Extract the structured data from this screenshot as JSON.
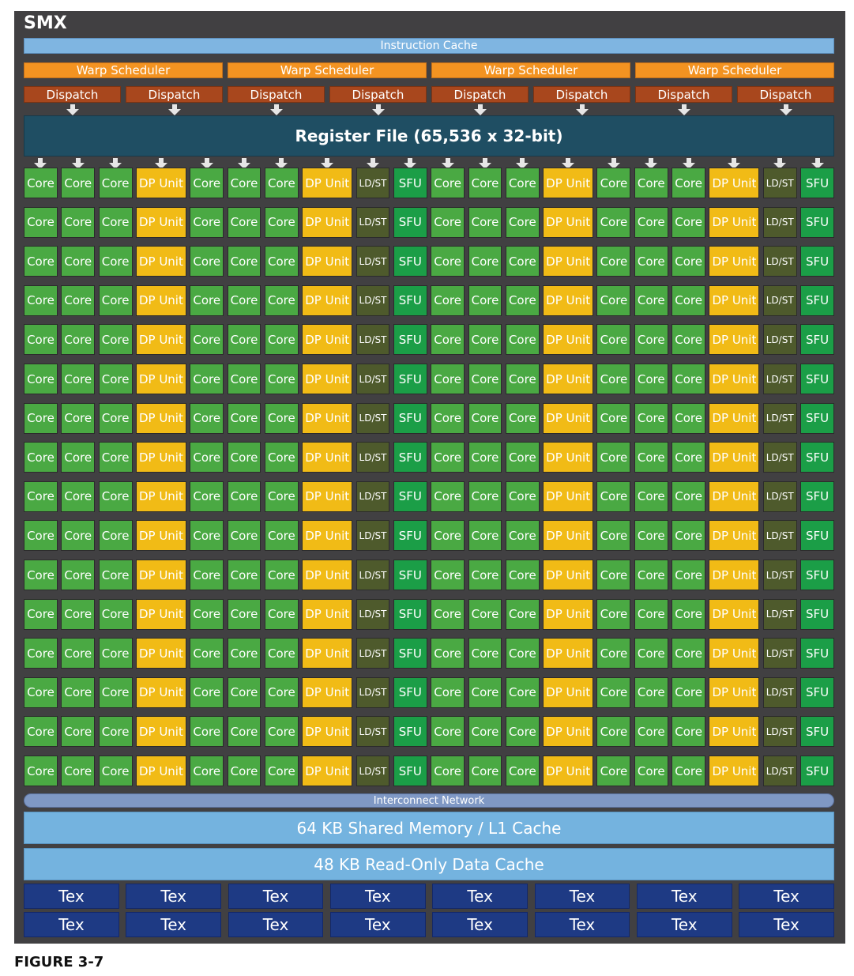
{
  "diagram": {
    "title": "SMX",
    "instruction_cache": "Instruction Cache",
    "warp_schedulers": [
      "Warp Scheduler",
      "Warp Scheduler",
      "Warp Scheduler",
      "Warp Scheduler"
    ],
    "dispatch_units": [
      "Dispatch",
      "Dispatch",
      "Dispatch",
      "Dispatch",
      "Dispatch",
      "Dispatch",
      "Dispatch",
      "Dispatch"
    ],
    "register_file": "Register File (65,536 x 32-bit)",
    "unit_grid": {
      "rows": 16,
      "columns": [
        "Core",
        "Core",
        "Core",
        "DP Unit",
        "Core",
        "Core",
        "Core",
        "DP Unit",
        "LD/ST",
        "SFU",
        "Core",
        "Core",
        "Core",
        "DP Unit",
        "Core",
        "Core",
        "Core",
        "DP Unit",
        "LD/ST",
        "SFU"
      ]
    },
    "interconnect": "Interconnect Network",
    "shared_memory": "64 KB Shared Memory / L1 Cache",
    "readonly_cache": "48 KB Read-Only Data Cache",
    "tex_units": [
      [
        "Tex",
        "Tex",
        "Tex",
        "Tex",
        "Tex",
        "Tex",
        "Tex",
        "Tex"
      ],
      [
        "Tex",
        "Tex",
        "Tex",
        "Tex",
        "Tex",
        "Tex",
        "Tex",
        "Tex"
      ]
    ],
    "colors": {
      "frame": "#414042",
      "core": "#4aa943",
      "dp_unit": "#f1bb16",
      "ldst": "#4e5a2c",
      "sfu": "#1b9e47",
      "warp_scheduler": "#f39321",
      "dispatch": "#a8471d",
      "register_file": "#1f4e63",
      "cache": "#74b3df",
      "tex": "#1e3a84"
    }
  },
  "caption": "FIGURE 3-7"
}
